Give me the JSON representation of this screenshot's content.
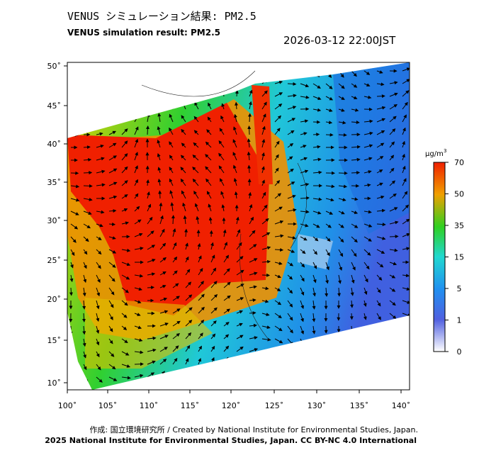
{
  "header": {
    "title": "VENUS シミュレーション結果: PM2.5",
    "subtitle": "VENUS simulation result: PM2.5",
    "timestamp": "2026-03-12 22:00JST"
  },
  "map": {
    "lon_labels": [
      "100˚",
      "105˚",
      "110˚",
      "115˚",
      "120˚",
      "125˚",
      "130˚",
      "135˚",
      "140˚"
    ],
    "lat_labels": [
      "50˚",
      "45˚",
      "40˚",
      "35˚",
      "30˚",
      "25˚",
      "20˚",
      "15˚",
      "10˚"
    ]
  },
  "colorbar": {
    "unit": "μg/m",
    "unit_sup": "3",
    "ticks": [
      "70",
      "50",
      "35",
      "15",
      "5",
      "1",
      "0"
    ]
  },
  "footer": {
    "credit": "作成: 国立環境研究所 / Created by National Institute for Environmental Studies, Japan.",
    "copyright": "2025 National Institute for Environmental Studies, Japan. CC BY-NC 4.0 International"
  }
}
